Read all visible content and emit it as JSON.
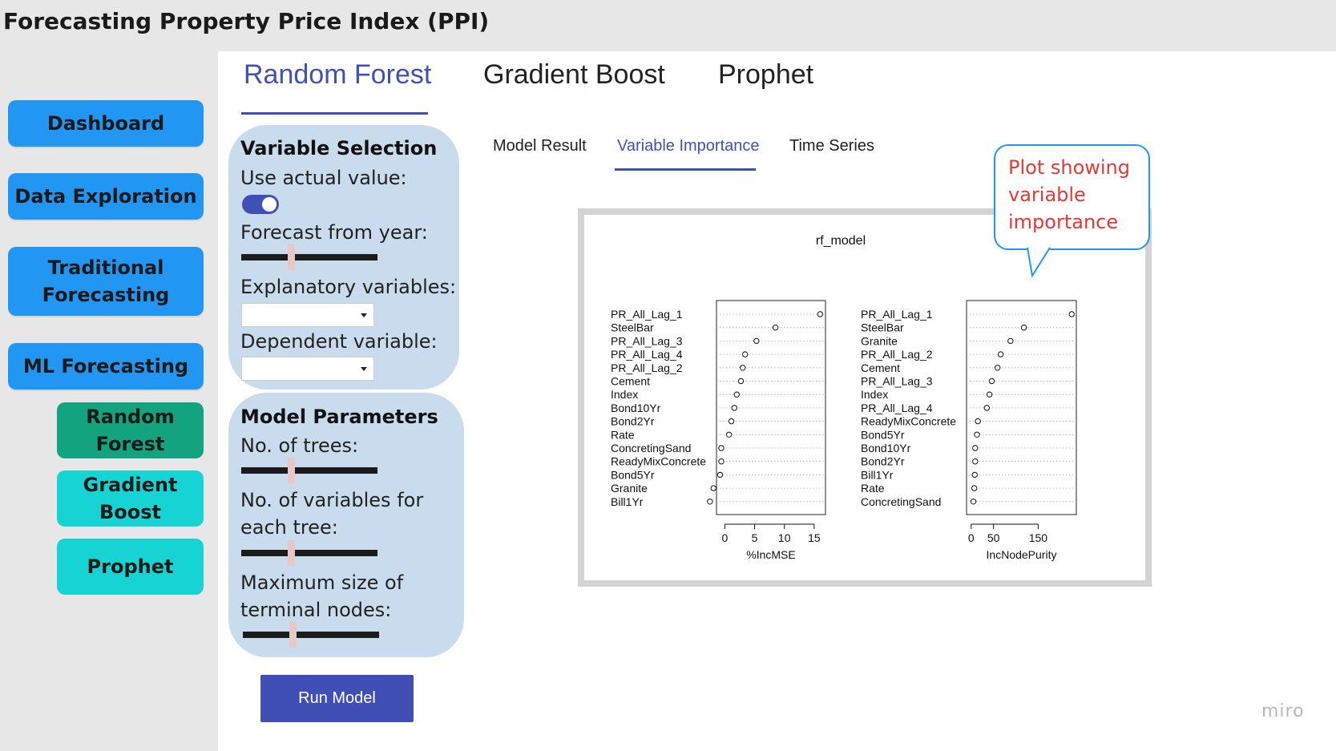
{
  "app": {
    "title": "Forecasting Property Price Index (PPI)"
  },
  "sidebar": {
    "items": [
      {
        "label": "Dashboard"
      },
      {
        "label": "Data Exploration"
      },
      {
        "label": "Traditional Forecasting"
      },
      {
        "label": "ML Forecasting"
      }
    ],
    "sub_items": [
      {
        "label": "Random Forest",
        "color": "#14a37f"
      },
      {
        "label": "Gradient Boost",
        "color": "#17d4d4"
      },
      {
        "label": "Prophet",
        "color": "#17d4d4"
      }
    ]
  },
  "tabs": [
    {
      "label": "Random Forest",
      "active": true
    },
    {
      "label": "Gradient Boost",
      "active": false
    },
    {
      "label": "Prophet",
      "active": false
    }
  ],
  "variable_selection": {
    "title": "Variable Selection",
    "use_actual_label": "Use actual value:",
    "use_actual_on": true,
    "forecast_year_label": "Forecast from year:",
    "explanatory_label": "Explanatory variables:",
    "dependent_label": "Dependent variable:"
  },
  "model_parameters": {
    "title": "Model Parameters",
    "trees_label": "No. of trees:",
    "vars_label": "No. of variables for each tree:",
    "nodes_label": "Maximum size of terminal nodes:"
  },
  "run_button": {
    "label": "Run Model"
  },
  "sub_tabs": [
    {
      "label": "Model Result",
      "active": false
    },
    {
      "label": "Variable Importance",
      "active": true
    },
    {
      "label": "Time Series",
      "active": false
    }
  ],
  "callout": {
    "text": "Plot showing variable importance"
  },
  "watermark": "miro",
  "colors": {
    "accent": "#3f51b5",
    "nav_blue": "#2196f3",
    "callout_red": "#e53935"
  },
  "chart_data": [
    {
      "type": "scatter",
      "title": "rf_model",
      "xlabel": "%IncMSE",
      "xlim": [
        -1,
        16.5
      ],
      "xticks": [
        0,
        5,
        10,
        15
      ],
      "categories": [
        "PR_All_Lag_1",
        "SteelBar",
        "PR_All_Lag_3",
        "PR_All_Lag_4",
        "PR_All_Lag_2",
        "Cement",
        "Index",
        "Bond10Yr",
        "Bond2Yr",
        "Rate",
        "ConcretingSand",
        "ReadyMixConcrete",
        "Bond5Yr",
        "Granite",
        "Bill1Yr"
      ],
      "values": [
        16,
        8.5,
        5.3,
        3.4,
        3.0,
        2.7,
        2.0,
        1.6,
        1.1,
        0.7,
        -0.6,
        -0.6,
        -0.8,
        -1.9,
        -2.5
      ]
    },
    {
      "type": "scatter",
      "xlabel": "IncNodePurity",
      "xlim": [
        -5,
        230
      ],
      "xticks": [
        0,
        50,
        150
      ],
      "categories": [
        "PR_All_Lag_1",
        "SteelBar",
        "Granite",
        "PR_All_Lag_2",
        "Cement",
        "PR_All_Lag_3",
        "Index",
        "PR_All_Lag_4",
        "ReadyMixConcrete",
        "Bond5Yr",
        "Bond10Yr",
        "Bond2Yr",
        "Bill1Yr",
        "Rate",
        "ConcretingSand"
      ],
      "values": [
        225,
        118,
        88,
        66,
        59,
        46,
        41,
        35,
        15,
        13,
        9,
        9,
        8,
        7,
        5
      ]
    }
  ]
}
